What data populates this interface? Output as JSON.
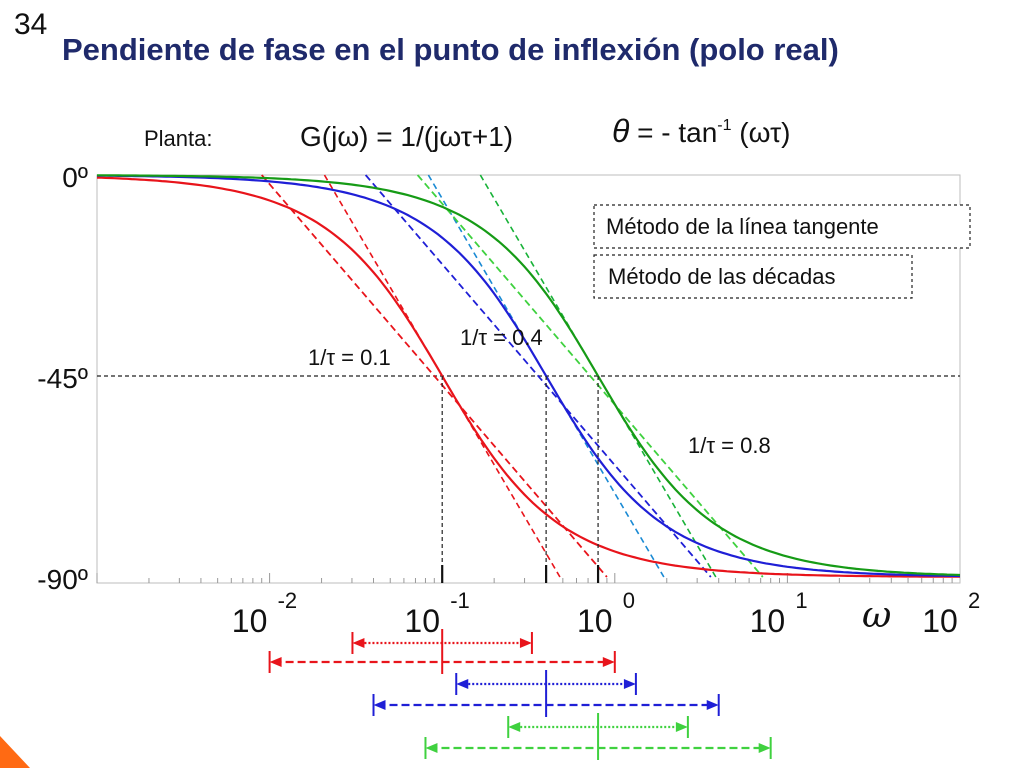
{
  "slide": {
    "number": "34",
    "title": "Pendiente de fase en el punto de inflexión (polo real)",
    "accent_color": "#ff6a13"
  },
  "formulas": {
    "planta_label": "Planta:",
    "transfer_function": "G(jω) = 1/(jωτ+1)",
    "phase_theta": "θ",
    "phase_rest": " = - tan",
    "phase_exp": "-1",
    "phase_arg": " (ωτ)"
  },
  "legend": {
    "tangent_method": "Método de la línea tangente",
    "decades_method": "Método de las décadas"
  },
  "chart_data": {
    "type": "line",
    "x_scale": "log",
    "xlim": [
      0.001,
      100
    ],
    "ylim": [
      -90,
      0
    ],
    "y_ticks": [
      {
        "value": 0,
        "label": "0º"
      },
      {
        "value": -45,
        "label": "-45º"
      },
      {
        "value": -90,
        "label": "-90º"
      }
    ],
    "x_ticks": [
      {
        "value": 0.01,
        "base": "10",
        "exp": "-2"
      },
      {
        "value": 0.1,
        "base": "10",
        "exp": "-1"
      },
      {
        "value": 1,
        "base": "10",
        "exp": "0"
      },
      {
        "value": 10,
        "base": "10",
        "exp": "1"
      },
      {
        "value": 100,
        "base": "10",
        "exp": "2"
      }
    ],
    "x_axis_symbol": "ω",
    "series": [
      {
        "corner": 0.1,
        "color": "#e8141b",
        "label": "1/τ = 0.1",
        "tangent_color": "#e8141b",
        "decade_color": "#e8141b",
        "tangent_range": [
          0.0302,
          0.331
        ],
        "decade_range": [
          0.01,
          1.0
        ]
      },
      {
        "corner": 0.4,
        "color": "#1f1fd6",
        "label": "1/τ = 0.4",
        "tangent_color": "#1a8ad4",
        "decade_color": "#1f1fd6",
        "tangent_range": [
          0.1206,
          1.325
        ],
        "decade_range": [
          0.04,
          4.0
        ]
      },
      {
        "corner": 0.8,
        "color": "#169b16",
        "label": "1/τ = 0.8",
        "tangent_color": "#18b238",
        "decade_color": "#3fd13f",
        "tangent_range": [
          0.2413,
          2.651
        ],
        "decade_range": [
          0.08,
          8.0
        ]
      }
    ],
    "grid": false
  }
}
